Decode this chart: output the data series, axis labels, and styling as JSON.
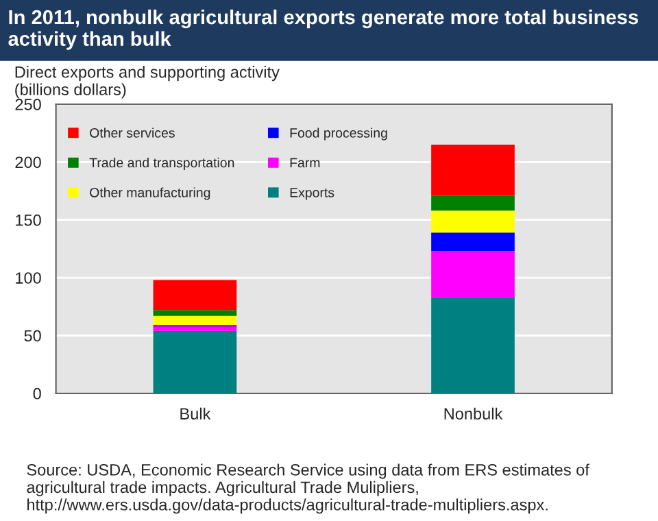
{
  "chart_data": {
    "type": "bar",
    "title": "In 2011, nonbulk agricultural exports generate more total business activity than bulk",
    "ylabel": "Direct exports and supporting activity\n(billions dollars)",
    "categories": [
      "Bulk",
      "Nonbulk"
    ],
    "stacked": true,
    "series": [
      {
        "name": "Exports",
        "color": "#008080",
        "values": [
          54,
          83
        ]
      },
      {
        "name": "Farm",
        "color": "#ff00ff",
        "values": [
          4,
          40
        ]
      },
      {
        "name": "Food processing",
        "color": "#0000ff",
        "values": [
          1,
          16
        ]
      },
      {
        "name": "Other manufacturing",
        "color": "#ffff00",
        "values": [
          8,
          19
        ]
      },
      {
        "name": "Trade and transportation",
        "color": "#008000",
        "values": [
          5,
          13
        ]
      },
      {
        "name": "Other services",
        "color": "#ff0000",
        "values": [
          26,
          44
        ]
      }
    ],
    "ylim": [
      0,
      250
    ],
    "yticks": [
      0,
      50,
      100,
      150,
      200,
      250
    ],
    "grid": "y",
    "legend": "top left",
    "annotations": [
      "Source: USDA, Economic Research Service using data from ERS estimates of agricultural trade impacts. Agricultural Trade Mulipliers, http://www.ers.usda.gov/data-products/agricultural-trade-multipliers.aspx."
    ]
  }
}
